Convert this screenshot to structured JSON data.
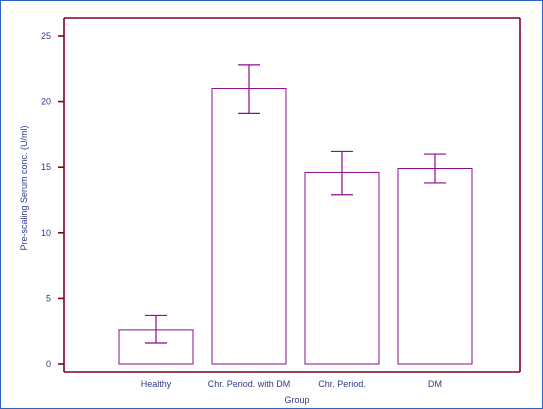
{
  "chart_data": {
    "type": "bar",
    "categories": [
      "Healthy",
      "Chr. Period. with DM",
      "Chr. Period.",
      "DM"
    ],
    "values": [
      2.6,
      21.0,
      14.6,
      14.9
    ],
    "error_low": [
      1.6,
      19.1,
      12.9,
      13.8
    ],
    "error_high": [
      3.7,
      22.8,
      16.2,
      16.0
    ],
    "xlabel": "Group",
    "ylabel": "Pre-scaling Serum conc. (U/ml)",
    "ylim": [
      0,
      25
    ],
    "yticks": [
      "0",
      "5",
      "10",
      "15",
      "20",
      "25"
    ],
    "grid": false,
    "colors": {
      "axis": "#800020",
      "bar_edge": "#8e0c8e",
      "text": "#2e3a8c",
      "frame": "#2b63c6"
    }
  }
}
